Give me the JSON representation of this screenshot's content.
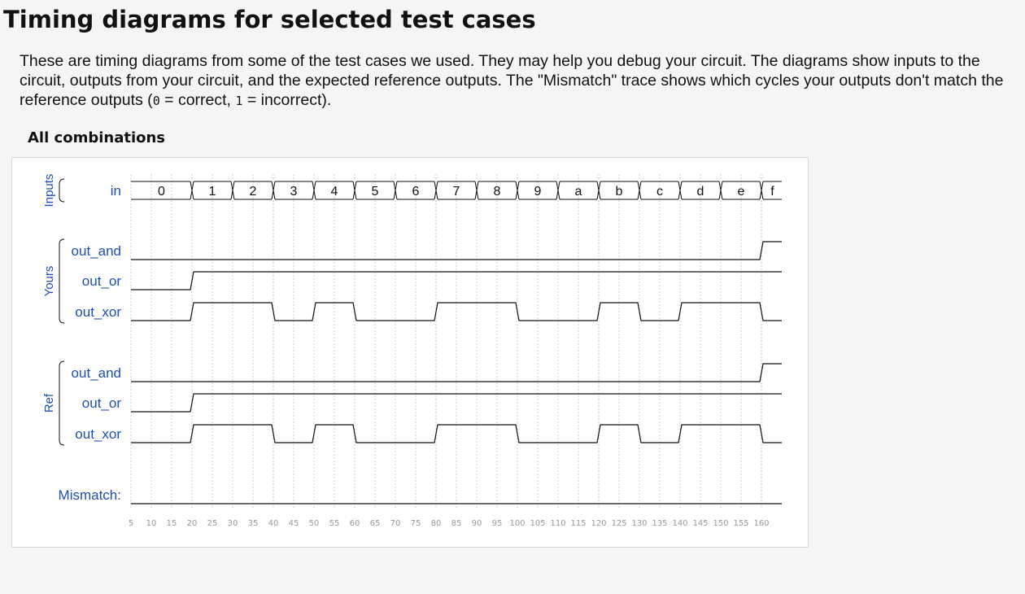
{
  "page": {
    "title": "Timing diagrams for selected test cases",
    "description_parts": [
      "These are timing diagrams from some of the test cases we used. They may help you debug your circuit. The diagrams show inputs to the circuit, outputs from your circuit, and the expected reference outputs. The \"Mismatch\" trace shows which cycles your outputs don't match the reference outputs (",
      "0",
      " = correct, ",
      "1",
      " = incorrect)."
    ],
    "section_title": "All combinations"
  },
  "chart_data": {
    "type": "timing",
    "time_axis": {
      "start": 5,
      "end": 160,
      "step": 5,
      "tick_labels": [
        "5",
        "10",
        "15",
        "20",
        "25",
        "30",
        "35",
        "40",
        "45",
        "50",
        "55",
        "60",
        "65",
        "70",
        "75",
        "80",
        "85",
        "90",
        "95",
        "100",
        "105",
        "110",
        "115",
        "120",
        "125",
        "130",
        "135",
        "140",
        "145",
        "150",
        "155",
        "160"
      ],
      "grid": true
    },
    "groups": [
      {
        "label": "Inputs",
        "color": "#1f4fb0"
      },
      {
        "label": "Yours",
        "color": "#1f4fb0"
      },
      {
        "label": "Ref",
        "color": "#1f4fb0"
      }
    ],
    "signals": [
      {
        "group": "Inputs",
        "name": "in",
        "kind": "bus",
        "segments": [
          {
            "start": 5,
            "end": 20,
            "value": "0"
          },
          {
            "start": 20,
            "end": 30,
            "value": "1"
          },
          {
            "start": 30,
            "end": 40,
            "value": "2"
          },
          {
            "start": 40,
            "end": 50,
            "value": "3"
          },
          {
            "start": 50,
            "end": 60,
            "value": "4"
          },
          {
            "start": 60,
            "end": 70,
            "value": "5"
          },
          {
            "start": 70,
            "end": 80,
            "value": "6"
          },
          {
            "start": 80,
            "end": 90,
            "value": "7"
          },
          {
            "start": 90,
            "end": 100,
            "value": "8"
          },
          {
            "start": 100,
            "end": 110,
            "value": "9"
          },
          {
            "start": 110,
            "end": 120,
            "value": "a"
          },
          {
            "start": 120,
            "end": 130,
            "value": "b"
          },
          {
            "start": 130,
            "end": 140,
            "value": "c"
          },
          {
            "start": 140,
            "end": 150,
            "value": "d"
          },
          {
            "start": 150,
            "end": 160,
            "value": "e"
          },
          {
            "start": 160,
            "end": 165,
            "value": "f"
          }
        ]
      },
      {
        "group": "Yours",
        "name": "out_and",
        "kind": "bit",
        "initial": 0,
        "changes": [
          [
            160,
            1
          ]
        ]
      },
      {
        "group": "Yours",
        "name": "out_or",
        "kind": "bit",
        "initial": 0,
        "changes": [
          [
            20,
            1
          ]
        ]
      },
      {
        "group": "Yours",
        "name": "out_xor",
        "kind": "bit",
        "initial": 0,
        "changes": [
          [
            20,
            1
          ],
          [
            40,
            0
          ],
          [
            50,
            1
          ],
          [
            60,
            0
          ],
          [
            80,
            1
          ],
          [
            100,
            0
          ],
          [
            120,
            1
          ],
          [
            130,
            0
          ],
          [
            140,
            1
          ],
          [
            160,
            0
          ]
        ]
      },
      {
        "group": "Ref",
        "name": "out_and",
        "kind": "bit",
        "initial": 0,
        "changes": [
          [
            160,
            1
          ]
        ]
      },
      {
        "group": "Ref",
        "name": "out_or",
        "kind": "bit",
        "initial": 0,
        "changes": [
          [
            20,
            1
          ]
        ]
      },
      {
        "group": "Ref",
        "name": "out_xor",
        "kind": "bit",
        "initial": 0,
        "changes": [
          [
            20,
            1
          ],
          [
            40,
            0
          ],
          [
            50,
            1
          ],
          [
            60,
            0
          ],
          [
            80,
            1
          ],
          [
            100,
            0
          ],
          [
            120,
            1
          ],
          [
            130,
            0
          ],
          [
            140,
            1
          ],
          [
            160,
            0
          ]
        ]
      },
      {
        "group": "",
        "name": "Mismatch:",
        "kind": "bit",
        "initial": 0,
        "changes": []
      }
    ],
    "colors": {
      "trace": "#111111",
      "label": "#1f4fb0",
      "grid": "#cfcfcf",
      "tick": "#999999"
    }
  }
}
